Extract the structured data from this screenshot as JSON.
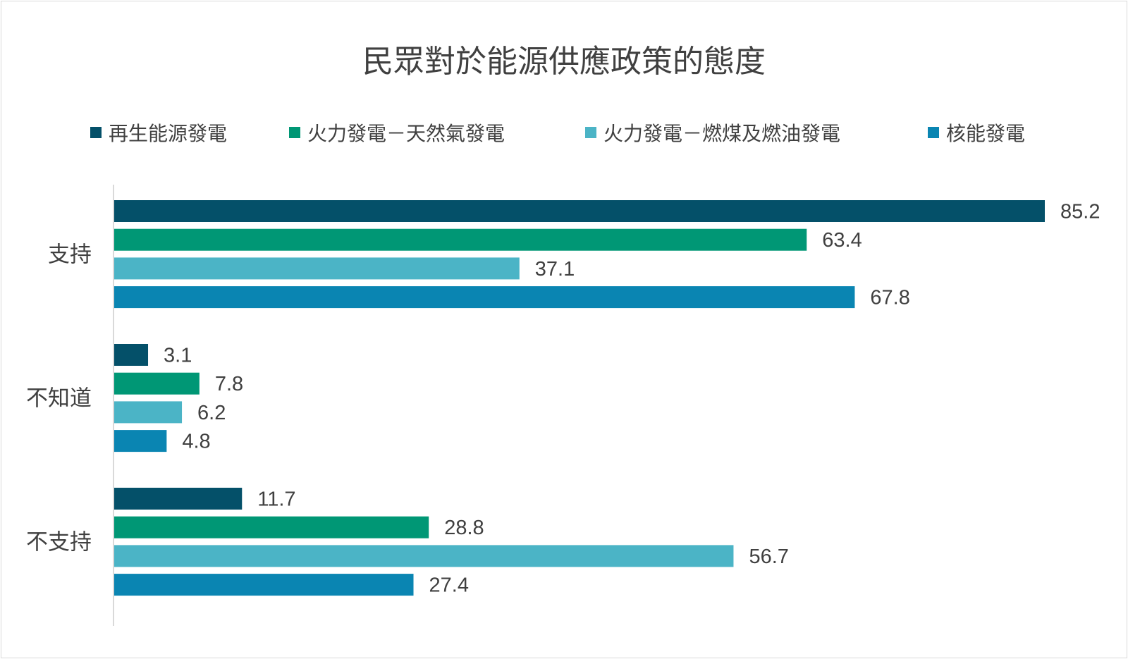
{
  "chart_data": {
    "type": "bar",
    "orientation": "horizontal",
    "title": "民眾對於能源供應政策的態度",
    "categories": [
      "支持",
      "不知道",
      "不支持"
    ],
    "series": [
      {
        "name": "再生能源發電",
        "color": "#045069",
        "values": [
          85.2,
          3.1,
          11.7
        ]
      },
      {
        "name": "火力發電－天然氣發電",
        "color": "#009775",
        "values": [
          63.4,
          7.8,
          28.8
        ]
      },
      {
        "name": "火力發電－燃煤及燃油發電",
        "color": "#4bb4c6",
        "values": [
          37.1,
          6.2,
          56.7
        ]
      },
      {
        "name": "核能發電",
        "color": "#0a85b2",
        "values": [
          67.8,
          4.8,
          27.4
        ]
      }
    ],
    "xlim": [
      0,
      85.2
    ],
    "legend_position": "top",
    "grid": false,
    "axis_color": "#d9d9d9"
  }
}
